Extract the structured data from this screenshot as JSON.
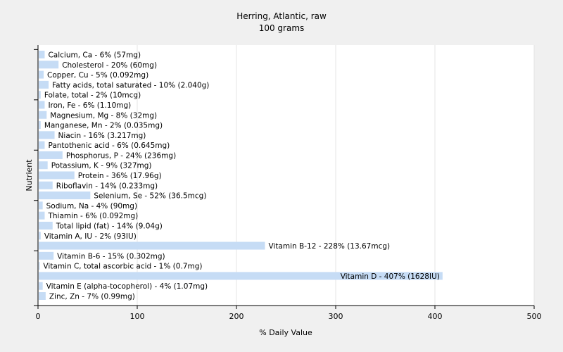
{
  "chart_data": {
    "type": "bar",
    "orientation": "horizontal",
    "title": "Herring, Atlantic, raw",
    "subtitle": "100 grams",
    "xlabel": "% Daily Value",
    "ylabel": "Nutrient",
    "xlim": [
      0,
      500
    ],
    "xticks": [
      0,
      100,
      200,
      300,
      400,
      500
    ],
    "grid": true,
    "bar_color": "#c6dcf5",
    "categories": [
      "Calcium, Ca",
      "Cholesterol",
      "Copper, Cu",
      "Fatty acids, total saturated",
      "Folate, total",
      "Iron, Fe",
      "Magnesium, Mg",
      "Manganese, Mn",
      "Niacin",
      "Pantothenic acid",
      "Phosphorus, P",
      "Potassium, K",
      "Protein",
      "Riboflavin",
      "Selenium, Se",
      "Sodium, Na",
      "Thiamin",
      "Total lipid (fat)",
      "Vitamin A, IU",
      "Vitamin B-12",
      "Vitamin B-6",
      "Vitamin C, total ascorbic acid",
      "Vitamin D",
      "Vitamin E (alpha-tocopherol)",
      "Zinc, Zn"
    ],
    "values": [
      6,
      20,
      5,
      10,
      2,
      6,
      8,
      2,
      16,
      6,
      24,
      9,
      36,
      14,
      52,
      4,
      6,
      14,
      2,
      228,
      15,
      1,
      407,
      4,
      7
    ],
    "labels": [
      "Calcium, Ca - 6% (57mg)",
      "Cholesterol - 20% (60mg)",
      "Copper, Cu - 5% (0.092mg)",
      "Fatty acids, total saturated - 10% (2.040g)",
      "Folate, total - 2% (10mcg)",
      "Iron, Fe - 6% (1.10mg)",
      "Magnesium, Mg - 8% (32mg)",
      "Manganese, Mn - 2% (0.035mg)",
      "Niacin - 16% (3.217mg)",
      "Pantothenic acid - 6% (0.645mg)",
      "Phosphorus, P - 24% (236mg)",
      "Potassium, K - 9% (327mg)",
      "Protein - 36% (17.96g)",
      "Riboflavin - 14% (0.233mg)",
      "Selenium, Se - 52% (36.5mcg)",
      "Sodium, Na - 4% (90mg)",
      "Thiamin - 6% (0.092mg)",
      "Total lipid (fat) - 14% (9.04g)",
      "Vitamin A, IU - 2% (93IU)",
      "Vitamin B-12 - 228% (13.67mcg)",
      "Vitamin B-6 - 15% (0.302mg)",
      "Vitamin C, total ascorbic acid - 1% (0.7mg)",
      "Vitamin D - 407% (1628IU)",
      "Vitamin E (alpha-tocopherol) - 4% (1.07mg)",
      "Zinc, Zn - 7% (0.99mg)"
    ]
  }
}
